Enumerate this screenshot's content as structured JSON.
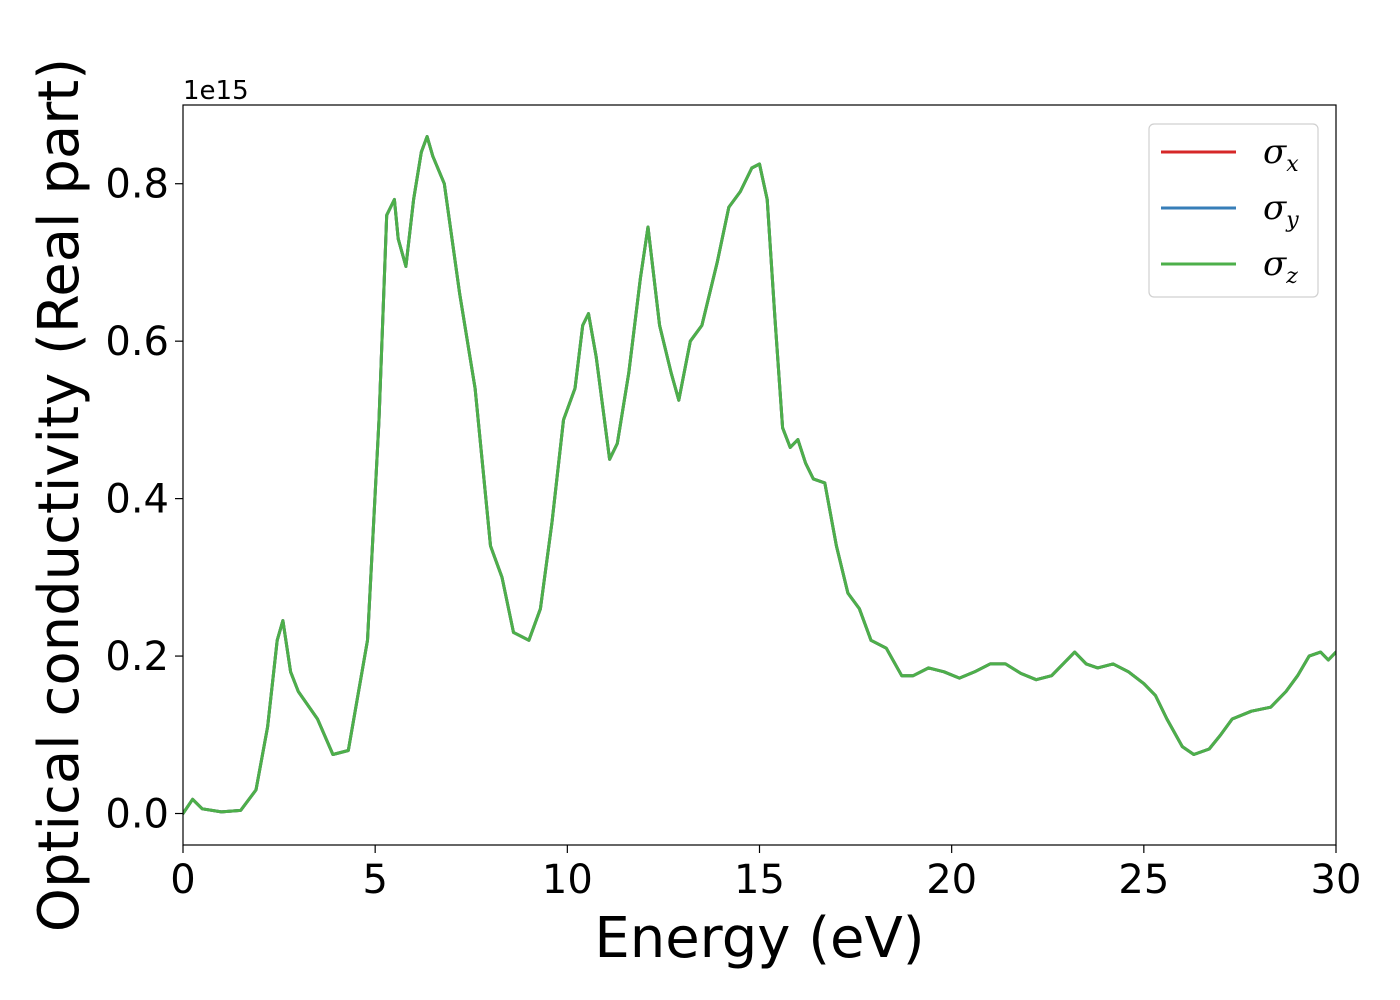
{
  "chart_data": {
    "type": "line",
    "xlabel": "Energy (eV)",
    "ylabel": "Optical conductivity (Real part)",
    "y_offset_label": "1e15",
    "xlim": [
      0,
      30
    ],
    "ylim": [
      -0.04,
      0.9
    ],
    "x_ticks": [
      0,
      5,
      10,
      15,
      20,
      25,
      30
    ],
    "x_tick_labels": [
      "0",
      "5",
      "10",
      "15",
      "20",
      "25",
      "30"
    ],
    "y_ticks": [
      0.0,
      0.2,
      0.4,
      0.6,
      0.8
    ],
    "y_tick_labels": [
      "0.0",
      "0.2",
      "0.4",
      "0.6",
      "0.8"
    ],
    "grid": false,
    "legend_position": "top-right",
    "x": [
      0,
      0.25,
      0.5,
      1.0,
      1.5,
      1.9,
      2.2,
      2.45,
      2.6,
      2.8,
      3.0,
      3.5,
      3.9,
      4.3,
      4.8,
      5.1,
      5.3,
      5.5,
      5.6,
      5.8,
      6.0,
      6.2,
      6.35,
      6.5,
      6.8,
      7.2,
      7.6,
      8.0,
      8.3,
      8.6,
      9.0,
      9.3,
      9.6,
      9.9,
      10.2,
      10.4,
      10.55,
      10.75,
      11.1,
      11.3,
      11.6,
      11.9,
      12.1,
      12.4,
      12.7,
      12.9,
      13.2,
      13.5,
      13.9,
      14.2,
      14.5,
      14.8,
      15.0,
      15.2,
      15.4,
      15.6,
      15.8,
      16.0,
      16.2,
      16.4,
      16.7,
      17.0,
      17.3,
      17.6,
      17.9,
      18.3,
      18.7,
      19.0,
      19.4,
      19.8,
      20.2,
      20.6,
      21.0,
      21.4,
      21.8,
      22.2,
      22.6,
      22.9,
      23.2,
      23.5,
      23.8,
      24.2,
      24.6,
      25.0,
      25.3,
      25.6,
      26.0,
      26.3,
      26.7,
      27.0,
      27.3,
      27.8,
      28.3,
      28.7,
      29.0,
      29.3,
      29.6,
      29.8,
      30.0
    ],
    "series": [
      {
        "name": "σx",
        "color": "#d62728",
        "values": [
          0.0,
          0.018,
          0.006,
          0.002,
          0.004,
          0.03,
          0.11,
          0.22,
          0.245,
          0.18,
          0.155,
          0.12,
          0.075,
          0.08,
          0.22,
          0.5,
          0.76,
          0.78,
          0.73,
          0.695,
          0.78,
          0.84,
          0.86,
          0.835,
          0.8,
          0.66,
          0.54,
          0.34,
          0.3,
          0.23,
          0.22,
          0.26,
          0.37,
          0.5,
          0.54,
          0.62,
          0.635,
          0.58,
          0.45,
          0.47,
          0.56,
          0.68,
          0.745,
          0.62,
          0.56,
          0.525,
          0.6,
          0.62,
          0.7,
          0.77,
          0.79,
          0.82,
          0.825,
          0.78,
          0.63,
          0.49,
          0.465,
          0.475,
          0.445,
          0.425,
          0.42,
          0.34,
          0.28,
          0.26,
          0.22,
          0.21,
          0.175,
          0.175,
          0.185,
          0.18,
          0.172,
          0.18,
          0.19,
          0.19,
          0.178,
          0.17,
          0.175,
          0.19,
          0.205,
          0.19,
          0.185,
          0.19,
          0.18,
          0.165,
          0.15,
          0.12,
          0.085,
          0.075,
          0.082,
          0.1,
          0.12,
          0.13,
          0.135,
          0.155,
          0.175,
          0.2,
          0.205,
          0.195,
          0.205
        ]
      },
      {
        "name": "σy",
        "color": "#377eb8",
        "values": [
          0.0,
          0.018,
          0.006,
          0.002,
          0.004,
          0.03,
          0.11,
          0.22,
          0.245,
          0.18,
          0.155,
          0.12,
          0.075,
          0.08,
          0.22,
          0.5,
          0.76,
          0.78,
          0.73,
          0.695,
          0.78,
          0.84,
          0.86,
          0.835,
          0.8,
          0.66,
          0.54,
          0.34,
          0.3,
          0.23,
          0.22,
          0.26,
          0.37,
          0.5,
          0.54,
          0.62,
          0.635,
          0.58,
          0.45,
          0.47,
          0.56,
          0.68,
          0.745,
          0.62,
          0.56,
          0.525,
          0.6,
          0.62,
          0.7,
          0.77,
          0.79,
          0.82,
          0.825,
          0.78,
          0.63,
          0.49,
          0.465,
          0.475,
          0.445,
          0.425,
          0.42,
          0.34,
          0.28,
          0.26,
          0.22,
          0.21,
          0.175,
          0.175,
          0.185,
          0.18,
          0.172,
          0.18,
          0.19,
          0.19,
          0.178,
          0.17,
          0.175,
          0.19,
          0.205,
          0.19,
          0.185,
          0.19,
          0.18,
          0.165,
          0.15,
          0.12,
          0.085,
          0.075,
          0.082,
          0.1,
          0.12,
          0.13,
          0.135,
          0.155,
          0.175,
          0.2,
          0.205,
          0.195,
          0.205
        ]
      },
      {
        "name": "σz",
        "color": "#4daf4a",
        "values": [
          0.0,
          0.018,
          0.006,
          0.002,
          0.004,
          0.03,
          0.11,
          0.22,
          0.245,
          0.18,
          0.155,
          0.12,
          0.075,
          0.08,
          0.22,
          0.5,
          0.76,
          0.78,
          0.73,
          0.695,
          0.78,
          0.84,
          0.86,
          0.835,
          0.8,
          0.66,
          0.54,
          0.34,
          0.3,
          0.23,
          0.22,
          0.26,
          0.37,
          0.5,
          0.54,
          0.62,
          0.635,
          0.58,
          0.45,
          0.47,
          0.56,
          0.68,
          0.745,
          0.62,
          0.56,
          0.525,
          0.6,
          0.62,
          0.7,
          0.77,
          0.79,
          0.82,
          0.825,
          0.78,
          0.63,
          0.49,
          0.465,
          0.475,
          0.445,
          0.425,
          0.42,
          0.34,
          0.28,
          0.26,
          0.22,
          0.21,
          0.175,
          0.175,
          0.185,
          0.18,
          0.172,
          0.18,
          0.19,
          0.19,
          0.178,
          0.17,
          0.175,
          0.19,
          0.205,
          0.19,
          0.185,
          0.19,
          0.18,
          0.165,
          0.15,
          0.12,
          0.085,
          0.075,
          0.082,
          0.1,
          0.12,
          0.13,
          0.135,
          0.155,
          0.175,
          0.2,
          0.205,
          0.195,
          0.205
        ]
      }
    ],
    "legend": [
      {
        "symbol": "σ",
        "sub": "x",
        "color": "#d62728"
      },
      {
        "symbol": "σ",
        "sub": "y",
        "color": "#377eb8"
      },
      {
        "symbol": "σ",
        "sub": "z",
        "color": "#4daf4a"
      }
    ]
  }
}
